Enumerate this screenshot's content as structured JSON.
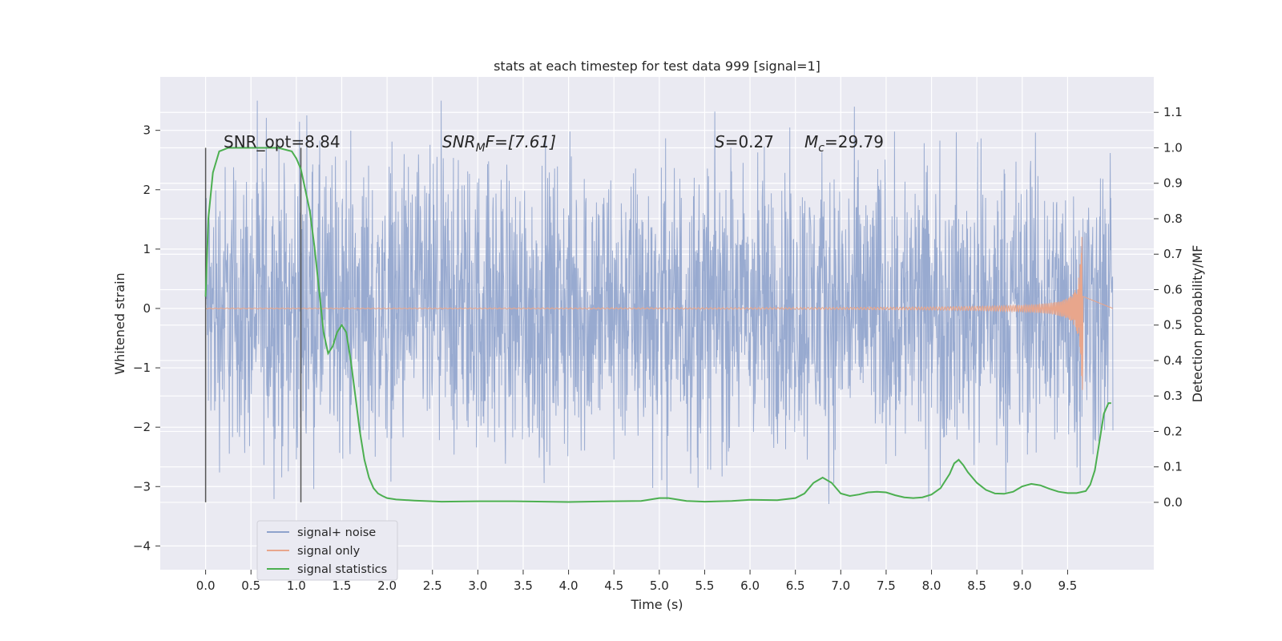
{
  "chart_data": {
    "type": "line",
    "title": "stats at each timestep for test data 999 [signal=1]",
    "xlabel": "Time (s)",
    "ylabel": "Whitened strain",
    "y2label": "Detection probability/MF",
    "xlim": [
      -0.5,
      10.45
    ],
    "ylim": [
      -4.4,
      3.9
    ],
    "y2lim": [
      -0.19,
      1.2
    ],
    "x_ticks": [
      "0.0",
      "0.5",
      "1.0",
      "1.5",
      "2.0",
      "2.5",
      "3.0",
      "3.5",
      "4.0",
      "4.5",
      "5.0",
      "5.5",
      "6.0",
      "6.5",
      "7.0",
      "7.5",
      "8.0",
      "8.5",
      "9.0",
      "9.5"
    ],
    "y_ticks": [
      "3",
      "2",
      "1",
      "0",
      "−1",
      "−2",
      "−3",
      "−4"
    ],
    "y2_ticks": [
      "1.1",
      "1.0",
      "0.9",
      "0.8",
      "0.7",
      "0.6",
      "0.5",
      "0.4",
      "0.3",
      "0.2",
      "0.1",
      "0.0"
    ],
    "grid": true,
    "legend_position": "lower-left",
    "annotations": {
      "snr_opt": "SNR_opt=8.84",
      "snr_mf_italic": "SNR",
      "snr_mf_sub": "M",
      "snr_mf_rest": "F=[7.61]",
      "s_italic": "S",
      "s_rest": "=0.27",
      "mc_italic": "M",
      "mc_sub": "c",
      "mc_rest": "=29.79"
    },
    "vertical_markers": [
      0.0,
      1.05
    ],
    "series": [
      {
        "name": "signal+ noise",
        "color": "#8fa3cc",
        "description_envelope": {
          "x_range": [
            0.0,
            10.0
          ],
          "typical_band": [
            -2.0,
            2.0
          ],
          "max_peaks": [
            3.5,
            3.2,
            3.1
          ],
          "min_peaks": [
            -3.6,
            -3.5
          ]
        }
      },
      {
        "name": "signal only",
        "color": "#e8a68c",
        "chirp": {
          "x_range": [
            0.0,
            9.67
          ],
          "peak_amplitude": 2.0,
          "peak_time": 9.67
        }
      },
      {
        "name": "signal statistics",
        "color": "#4caf50",
        "axis": "y2",
        "x": [
          0.0,
          0.03,
          0.08,
          0.15,
          0.25,
          0.4,
          0.6,
          0.8,
          0.95,
          1.0,
          1.05,
          1.1,
          1.15,
          1.2,
          1.25,
          1.3,
          1.35,
          1.4,
          1.45,
          1.5,
          1.55,
          1.6,
          1.65,
          1.7,
          1.75,
          1.8,
          1.85,
          1.9,
          1.95,
          2.0,
          2.1,
          2.3,
          2.6,
          3.0,
          3.4,
          4.0,
          4.5,
          4.8,
          5.0,
          5.1,
          5.3,
          5.5,
          5.8,
          6.0,
          6.3,
          6.5,
          6.6,
          6.7,
          6.8,
          6.9,
          7.0,
          7.1,
          7.2,
          7.3,
          7.4,
          7.5,
          7.6,
          7.7,
          7.8,
          7.9,
          8.0,
          8.1,
          8.2,
          8.25,
          8.3,
          8.35,
          8.4,
          8.5,
          8.6,
          8.7,
          8.8,
          8.9,
          9.0,
          9.1,
          9.2,
          9.3,
          9.4,
          9.5,
          9.6,
          9.7,
          9.75,
          9.8,
          9.85,
          9.9,
          9.95,
          9.98
        ],
        "values": [
          0.58,
          0.8,
          0.93,
          0.99,
          1.0,
          1.0,
          1.0,
          1.0,
          0.99,
          0.97,
          0.94,
          0.88,
          0.82,
          0.72,
          0.6,
          0.48,
          0.42,
          0.44,
          0.48,
          0.5,
          0.48,
          0.4,
          0.3,
          0.2,
          0.12,
          0.07,
          0.04,
          0.025,
          0.018,
          0.012,
          0.008,
          0.005,
          0.002,
          0.003,
          0.003,
          0.001,
          0.003,
          0.004,
          0.012,
          0.012,
          0.004,
          0.002,
          0.004,
          0.007,
          0.006,
          0.012,
          0.025,
          0.055,
          0.07,
          0.055,
          0.025,
          0.018,
          0.022,
          0.028,
          0.03,
          0.028,
          0.02,
          0.014,
          0.012,
          0.014,
          0.022,
          0.04,
          0.08,
          0.11,
          0.12,
          0.105,
          0.085,
          0.055,
          0.035,
          0.025,
          0.024,
          0.03,
          0.045,
          0.052,
          0.048,
          0.038,
          0.03,
          0.026,
          0.026,
          0.032,
          0.05,
          0.09,
          0.17,
          0.25,
          0.28,
          0.28
        ]
      }
    ]
  }
}
